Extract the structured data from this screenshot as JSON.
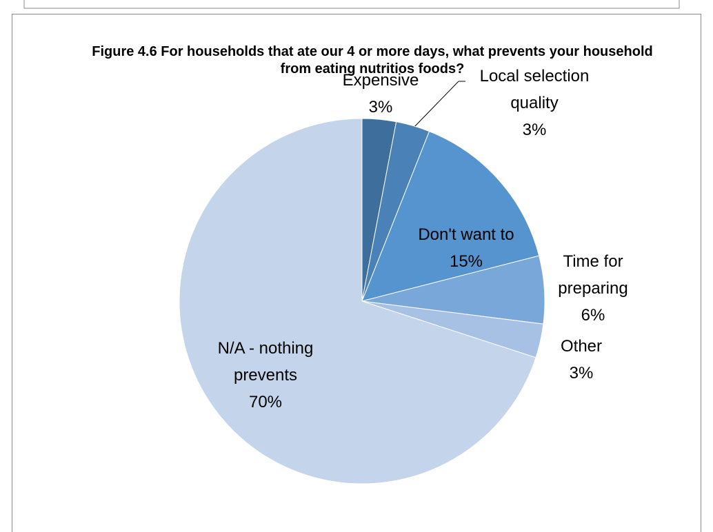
{
  "chart_data": {
    "type": "pie",
    "title": "Figure 4.6 For households that ate our 4 or more days, what prevents your household from eating nutritios foods?",
    "categories": [
      "Expensive",
      "Local selection quality",
      "Don't want to",
      "Time for preparing",
      "Other",
      "N/A - nothing prevents"
    ],
    "values": [
      3,
      3,
      15,
      6,
      3,
      70
    ],
    "value_labels": [
      "3%",
      "3%",
      "15%",
      "6%",
      "3%",
      "70%"
    ],
    "colors": [
      "#3e6e9c",
      "#4a82b8",
      "#5594cf",
      "#7aa7d9",
      "#a6c1e4",
      "#c3d4eb"
    ]
  }
}
